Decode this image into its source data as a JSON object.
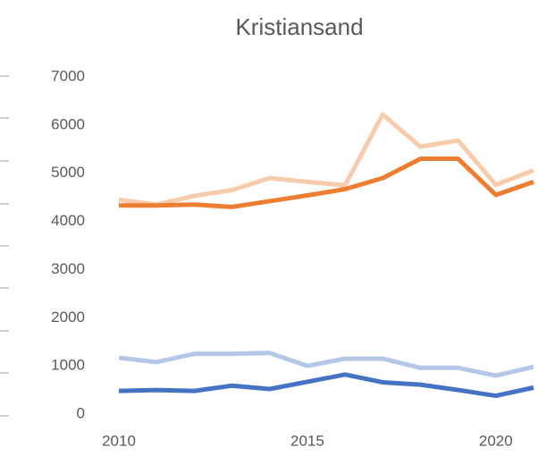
{
  "chart_data": {
    "type": "line",
    "title": "Kristiansand",
    "x": [
      2010,
      2011,
      2012,
      2013,
      2014,
      2015,
      2016,
      2017,
      2018,
      2019,
      2020,
      2021
    ],
    "xlim": [
      2010,
      2021
    ],
    "xticks": [
      2010,
      2015,
      2020
    ],
    "ylim": [
      0,
      7000
    ],
    "yticks": [
      0,
      1000,
      2000,
      3000,
      4000,
      5000,
      6000,
      7000
    ],
    "grid": false,
    "series": [
      {
        "color": "#f8cbad",
        "values": [
          4450,
          4350,
          4530,
          4650,
          4900,
          4820,
          4750,
          6220,
          5550,
          5680,
          4760,
          5060
        ]
      },
      {
        "color": "#ed7d31",
        "values": [
          4330,
          4330,
          4350,
          4300,
          4420,
          4540,
          4670,
          4900,
          5300,
          5300,
          4550,
          4820
        ]
      },
      {
        "color": "#b4c7e7",
        "values": [
          1170,
          1080,
          1250,
          1250,
          1270,
          1000,
          1150,
          1150,
          960,
          960,
          800,
          980
        ]
      },
      {
        "color": "#4472c4",
        "values": [
          480,
          500,
          480,
          590,
          520,
          670,
          820,
          660,
          610,
          500,
          380,
          550
        ]
      }
    ]
  }
}
